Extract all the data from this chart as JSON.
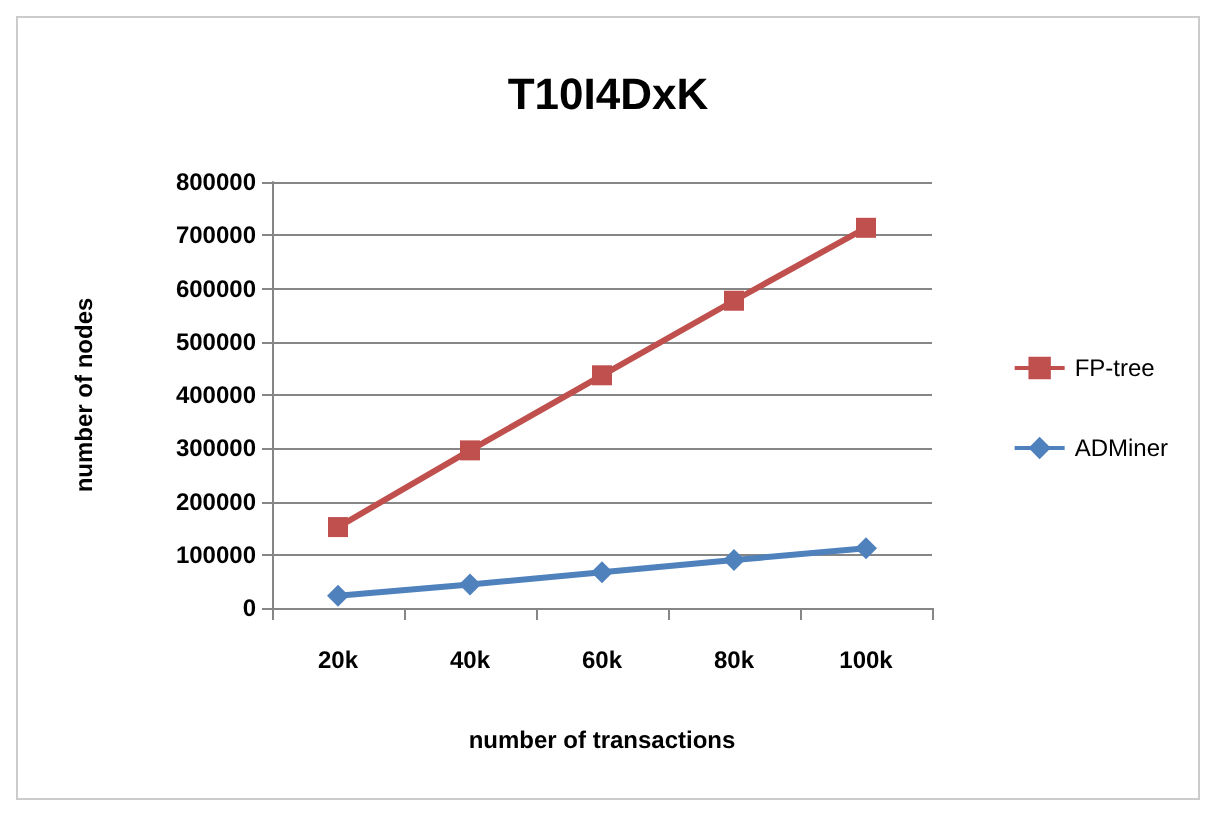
{
  "chart_data": {
    "type": "line",
    "title": "T10I4DxK",
    "xlabel": "number of transactions",
    "ylabel": "number of nodes",
    "categories": [
      "20k",
      "40k",
      "60k",
      "80k",
      "100k"
    ],
    "series": [
      {
        "name": "FP-tree",
        "color": "#c0504d",
        "marker": "square",
        "values": [
          152000,
          296000,
          437000,
          577000,
          714000
        ]
      },
      {
        "name": "ADMiner",
        "color": "#4f81bd",
        "marker": "diamond",
        "values": [
          23000,
          44000,
          67000,
          90000,
          112000
        ]
      }
    ],
    "ylim": [
      0,
      800000
    ],
    "yticks": [
      0,
      100000,
      200000,
      300000,
      400000,
      500000,
      600000,
      700000,
      800000
    ],
    "grid": "y",
    "legend": "right"
  }
}
